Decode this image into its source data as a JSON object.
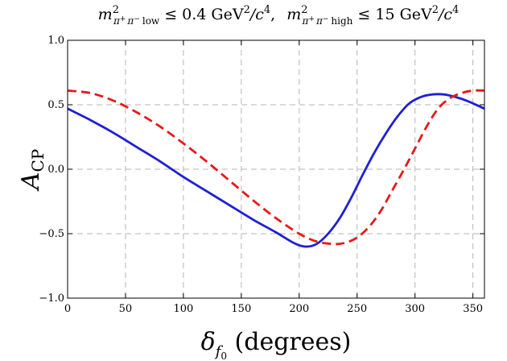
{
  "chart_data": {
    "type": "line",
    "title_parts": {
      "m": "m",
      "sup": "2",
      "sub_low_pi_plus": "π",
      "sub_low_plus": "+",
      "sub_low_pi_minus": "π",
      "sub_low_minus": "−",
      "sub_low_word": "low",
      "cond1": "≤ 0.4 GeV",
      "unit_sup": "2",
      "slash_c": "/c",
      "c_sup": "4",
      "sep": ",",
      "sub_high_word": "high",
      "cond2": "≤ 15 GeV"
    },
    "ylabel": {
      "main": "A",
      "sub": "CP"
    },
    "xlabel": {
      "delta": "δ",
      "sub_f": "f",
      "sub_zero": "0",
      "rest": " (degrees)"
    },
    "xlim": [
      0,
      360
    ],
    "ylim": [
      -1.0,
      1.0
    ],
    "x_ticks": [
      0,
      50,
      100,
      150,
      200,
      250,
      300,
      350
    ],
    "x_tick_labels": [
      "0",
      "50",
      "100",
      "150",
      "200",
      "250",
      "300",
      "350"
    ],
    "y_ticks": [
      -1.0,
      -0.5,
      0.0,
      0.5,
      1.0
    ],
    "y_tick_labels": [
      "−1.0",
      "−0.5",
      "0.0",
      "0.5",
      "1.0"
    ],
    "grid": true,
    "series": [
      {
        "style": "solid",
        "color": "#1f1fd6",
        "x": [
          0,
          20,
          40,
          60,
          80,
          100,
          120,
          140,
          160,
          180,
          195,
          205,
          215,
          225,
          235,
          245,
          255,
          265,
          275,
          285,
          295,
          305,
          315,
          325,
          335,
          345,
          360
        ],
        "y": [
          0.47,
          0.38,
          0.28,
          0.17,
          0.06,
          -0.06,
          -0.17,
          -0.28,
          -0.39,
          -0.49,
          -0.57,
          -0.6,
          -0.58,
          -0.5,
          -0.38,
          -0.22,
          -0.04,
          0.13,
          0.28,
          0.41,
          0.51,
          0.56,
          0.58,
          0.58,
          0.56,
          0.53,
          0.47
        ]
      },
      {
        "style": "dashed",
        "color": "#e41a1a",
        "x": [
          0,
          20,
          40,
          60,
          80,
          100,
          120,
          140,
          160,
          180,
          200,
          215,
          230,
          240,
          250,
          260,
          270,
          280,
          290,
          300,
          310,
          320,
          330,
          340,
          350,
          360
        ],
        "y": [
          0.61,
          0.59,
          0.53,
          0.44,
          0.33,
          0.2,
          0.06,
          -0.09,
          -0.24,
          -0.38,
          -0.5,
          -0.56,
          -0.58,
          -0.57,
          -0.53,
          -0.45,
          -0.33,
          -0.17,
          -0.01,
          0.16,
          0.33,
          0.47,
          0.55,
          0.59,
          0.61,
          0.61
        ]
      }
    ]
  }
}
